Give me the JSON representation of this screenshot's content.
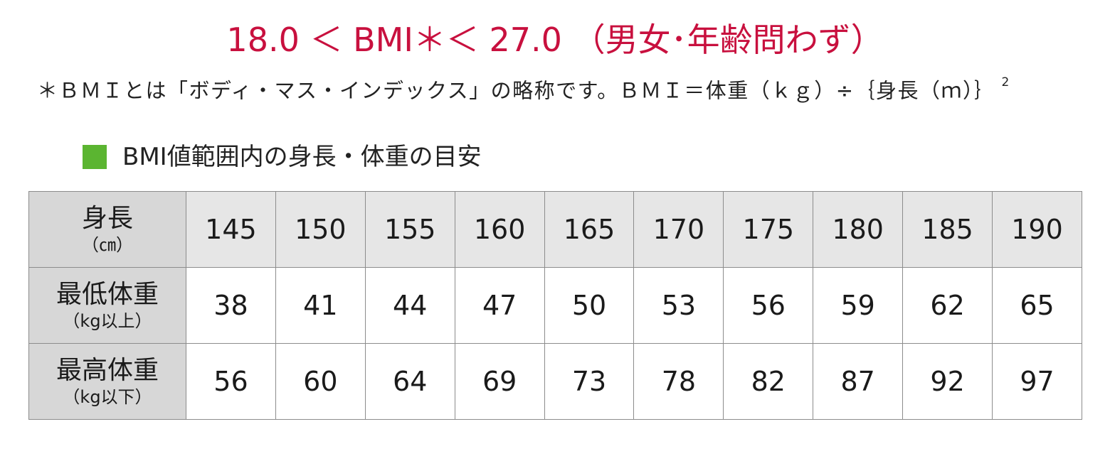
{
  "title": "18.0 ＜ BMI＊＜ 27.0 （男女･年齢問わず）",
  "note": {
    "text": "＊ＢＭＩとは「ボディ・マス・インデックス」の略称です。ＢＭＩ＝体重（ｋｇ）÷｛身長（ｍ）｝",
    "exponent": "2"
  },
  "section": {
    "label": "BMI値範囲内の身長・体重の目安"
  },
  "table": {
    "rows": [
      {
        "header": "身長",
        "unit": "（㎝）",
        "values": [
          "145",
          "150",
          "155",
          "160",
          "165",
          "170",
          "175",
          "180",
          "185",
          "190"
        ]
      },
      {
        "header": "最低体重",
        "unit": "（kg以上）",
        "values": [
          "38",
          "41",
          "44",
          "47",
          "50",
          "53",
          "56",
          "59",
          "62",
          "65"
        ]
      },
      {
        "header": "最高体重",
        "unit": "（kg以下）",
        "values": [
          "56",
          "60",
          "64",
          "69",
          "73",
          "78",
          "82",
          "87",
          "92",
          "97"
        ]
      }
    ]
  },
  "colors": {
    "title": "#c8103e",
    "square": "#5bb531",
    "header_bg": "#d7d7d7",
    "height_row_bg": "#e6e6e6",
    "border": "#8c8c8c"
  }
}
